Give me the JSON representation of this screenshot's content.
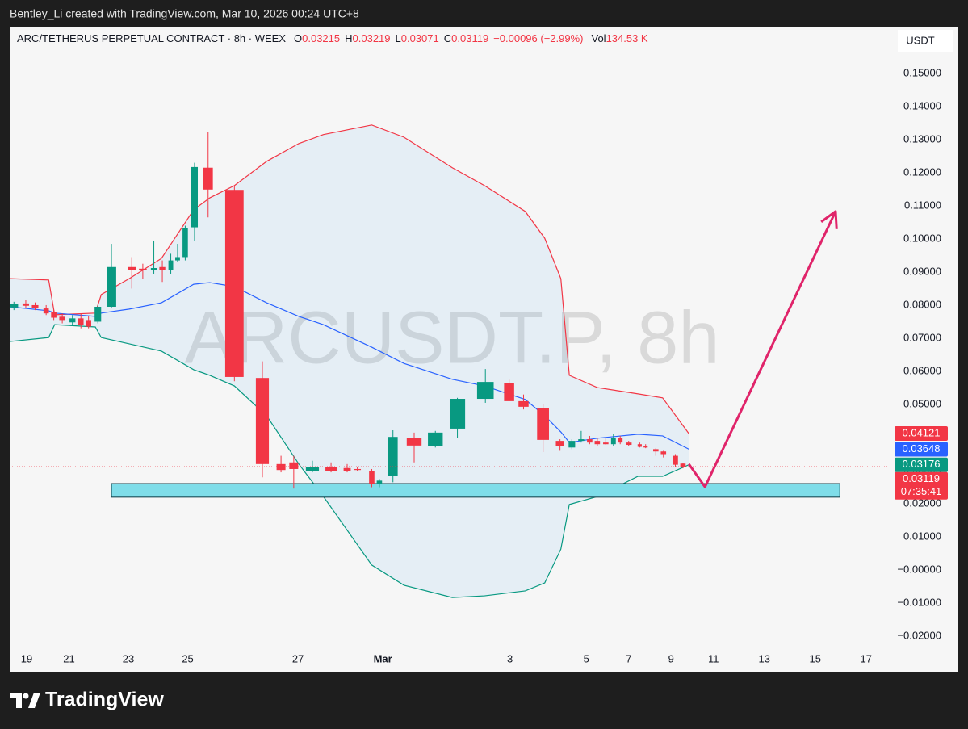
{
  "header": {
    "credit": "Bentley_Li created with TradingView.com, Mar 10, 2026 00:24 UTC+8"
  },
  "footer": {
    "brand": "TradingView"
  },
  "chart_data": {
    "type": "candlestick",
    "symbol": "ARC/TETHERUS PERPETUAL CONTRACT · 8h · WEEX",
    "legend": [
      {
        "key": "O",
        "value": "0.03215"
      },
      {
        "key": "H",
        "value": "0.03219"
      },
      {
        "key": "L",
        "value": "0.03071"
      },
      {
        "key": "C",
        "value": "0.03119"
      }
    ],
    "change": "−0.00096 (−2.99%)",
    "volume": {
      "key": "Vol",
      "value": "134.53 K"
    },
    "watermark": "ARCUSDT.P, 8h",
    "currency": "USDT",
    "up_color": "#089981",
    "down_color": "#f23645",
    "grid": false,
    "xlim": [
      0,
      103.4
    ],
    "ylim": [
      -0.0229,
      0.1641
    ],
    "xticks": [
      {
        "value": 2,
        "label": "19"
      },
      {
        "value": 7,
        "label": "21"
      },
      {
        "value": 14,
        "label": "23"
      },
      {
        "value": 21,
        "label": "25"
      },
      {
        "value": 34,
        "label": "27"
      },
      {
        "value": 44,
        "label": "Mar"
      },
      {
        "value": 59,
        "label": "3"
      },
      {
        "value": 68,
        "label": "5"
      },
      {
        "value": 73,
        "label": "7"
      },
      {
        "value": 78,
        "label": "9"
      },
      {
        "value": 83,
        "label": "11"
      },
      {
        "value": 89,
        "label": "13"
      },
      {
        "value": 95,
        "label": "15"
      },
      {
        "value": 101,
        "label": "17"
      }
    ],
    "yticks": [
      {
        "value": 0.15,
        "label": "0.15000"
      },
      {
        "value": 0.14,
        "label": "0.14000"
      },
      {
        "value": 0.13,
        "label": "0.13000"
      },
      {
        "value": 0.12,
        "label": "0.12000"
      },
      {
        "value": 0.11,
        "label": "0.11000"
      },
      {
        "value": 0.1,
        "label": "0.10000"
      },
      {
        "value": 0.09,
        "label": "0.09000"
      },
      {
        "value": 0.08,
        "label": "0.08000"
      },
      {
        "value": 0.07,
        "label": "0.07000"
      },
      {
        "value": 0.06,
        "label": "0.06000"
      },
      {
        "value": 0.05,
        "label": "0.05000"
      },
      {
        "value": 0.04,
        "label": "0.04000"
      },
      {
        "value": 0.03,
        "label": "0.03000"
      },
      {
        "value": 0.02,
        "label": "0.02000"
      },
      {
        "value": 0.01,
        "label": "0.01000"
      },
      {
        "value": 0,
        "label": "−0.00000"
      },
      {
        "value": -0.01,
        "label": "−0.01000"
      },
      {
        "value": -0.02,
        "label": "−0.02000"
      }
    ],
    "x": [
      0.5,
      1.9,
      3.0,
      4.3,
      5.2,
      6.2,
      7.4,
      8.4,
      9.3,
      10.4,
      12.0,
      14.4,
      15.7,
      17.0,
      18.0,
      19.0,
      19.8,
      20.7,
      21.8,
      23.4,
      26.5,
      29.8,
      32.0,
      33.5,
      35.7,
      37.9,
      39.8,
      41.0,
      42.7,
      43.6,
      45.2,
      47.7,
      50.2,
      52.8,
      56.1,
      58.9,
      60.6,
      62.9,
      64.9,
      66.3,
      67.4,
      68.4,
      69.3,
      70.3,
      71.2,
      72.0,
      73.0,
      74.3,
      75.0,
      76.2,
      77.1,
      78.5,
      79.4
    ],
    "open": [
      0.0793,
      0.0805,
      0.08,
      0.079,
      0.0778,
      0.0765,
      0.0748,
      0.076,
      0.0755,
      0.075,
      0.0795,
      0.0915,
      0.091,
      0.0905,
      0.0915,
      0.0905,
      0.0935,
      0.0945,
      0.1035,
      0.1215,
      0.1148,
      0.058,
      0.032,
      0.0325,
      0.03,
      0.031,
      0.0308,
      0.0305,
      0.0298,
      0.026,
      0.0283,
      0.04,
      0.0375,
      0.0427,
      0.0517,
      0.0565,
      0.051,
      0.049,
      0.039,
      0.037,
      0.039,
      0.0395,
      0.039,
      0.0385,
      0.038,
      0.04,
      0.0385,
      0.038,
      0.0375,
      0.0365,
      0.0358,
      0.0345,
      0.03215
    ],
    "high": [
      0.081,
      0.0815,
      0.0808,
      0.08,
      0.0785,
      0.0775,
      0.077,
      0.0775,
      0.0768,
      0.08,
      0.0985,
      0.0945,
      0.0925,
      0.0995,
      0.0935,
      0.0955,
      0.0985,
      0.104,
      0.123,
      0.1324,
      0.116,
      0.063,
      0.0345,
      0.0345,
      0.033,
      0.0325,
      0.032,
      0.0312,
      0.0305,
      0.0275,
      0.0422,
      0.0415,
      0.042,
      0.052,
      0.0607,
      0.0575,
      0.053,
      0.05,
      0.0395,
      0.0395,
      0.042,
      0.0405,
      0.04,
      0.04,
      0.041,
      0.0405,
      0.039,
      0.0385,
      0.038,
      0.0368,
      0.036,
      0.035,
      0.03219
    ],
    "low": [
      0.0785,
      0.079,
      0.0785,
      0.077,
      0.0755,
      0.0745,
      0.0738,
      0.073,
      0.073,
      0.0745,
      0.079,
      0.085,
      0.088,
      0.0895,
      0.087,
      0.0895,
      0.093,
      0.0935,
      0.0995,
      0.1065,
      0.057,
      0.028,
      0.0295,
      0.0246,
      0.0295,
      0.0295,
      0.0295,
      0.0298,
      0.025,
      0.025,
      0.0265,
      0.0325,
      0.037,
      0.04,
      0.0505,
      0.051,
      0.0485,
      0.0356,
      0.036,
      0.0365,
      0.0385,
      0.038,
      0.0375,
      0.0378,
      0.0375,
      0.038,
      0.0375,
      0.037,
      0.0368,
      0.0345,
      0.034,
      0.031,
      0.03071
    ],
    "close": [
      0.0803,
      0.0798,
      0.079,
      0.0775,
      0.0762,
      0.0755,
      0.076,
      0.074,
      0.0735,
      0.0795,
      0.0915,
      0.0905,
      0.0905,
      0.0912,
      0.0905,
      0.0935,
      0.0945,
      0.1032,
      0.1217,
      0.1149,
      0.0583,
      0.032,
      0.0302,
      0.0305,
      0.031,
      0.03,
      0.03,
      0.0302,
      0.026,
      0.027,
      0.0402,
      0.0376,
      0.0415,
      0.0517,
      0.0568,
      0.051,
      0.0493,
      0.0393,
      0.0375,
      0.039,
      0.0395,
      0.0385,
      0.038,
      0.038,
      0.04,
      0.0385,
      0.0378,
      0.0372,
      0.037,
      0.0358,
      0.035,
      0.0318,
      0.03119
    ],
    "bands": {
      "x": [
        0,
        4.6,
        5.3,
        10.1,
        10.8,
        14.1,
        17.9,
        21.7,
        23.6,
        26.5,
        30.3,
        34.1,
        37.0,
        42.7,
        46.5,
        52.2,
        56.0,
        60.8,
        63.1,
        65.0,
        66.0,
        69.3,
        74.1,
        77.0,
        80.1
      ],
      "upper": [
        0.088,
        0.0876,
        0.0771,
        0.0776,
        0.0832,
        0.088,
        0.0941,
        0.1088,
        0.1124,
        0.1161,
        0.1234,
        0.1288,
        0.1315,
        0.1344,
        0.1307,
        0.1215,
        0.1161,
        0.1083,
        0.1002,
        0.088,
        0.0588,
        0.0551,
        0.0532,
        0.052,
        0.0412
      ],
      "middle": [
        0.0795,
        0.0783,
        0.0776,
        0.0766,
        0.0776,
        0.0788,
        0.0807,
        0.0863,
        0.0868,
        0.0856,
        0.0807,
        0.0766,
        0.0741,
        0.0673,
        0.0624,
        0.0576,
        0.0556,
        0.0515,
        0.0466,
        0.0417,
        0.0385,
        0.0398,
        0.041,
        0.0405,
        0.0365
      ],
      "lower": [
        0.069,
        0.0702,
        0.0741,
        0.0734,
        0.0702,
        0.0683,
        0.0661,
        0.0605,
        0.0588,
        0.0556,
        0.0466,
        0.032,
        0.0222,
        0.0015,
        -0.0046,
        -0.0083,
        -0.0078,
        -0.0063,
        -0.0039,
        0.0063,
        0.0198,
        0.0222,
        0.0283,
        0.0283,
        0.0318
      ],
      "upper_color": "#f23645",
      "middle_color": "#2962ff",
      "lower_color": "#089981"
    },
    "last_labels": [
      {
        "value": 0.04121,
        "label": "0.04121",
        "color": "#f23645"
      },
      {
        "value": 0.03648,
        "label": "0.03648",
        "color": "#2962ff"
      },
      {
        "value": 0.03176,
        "label": "0.03176",
        "color": "#089981"
      },
      {
        "value": 0.03119,
        "label": "0.03119",
        "countdown": "07:35:41",
        "color": "#f23645"
      }
    ],
    "zone": {
      "x": [
        12.0,
        97.9
      ],
      "y": [
        0.022,
        0.0261
      ],
      "color": "#7fdde9"
    },
    "arrow": {
      "x": [
        80.1,
        82.0,
        97.4
      ],
      "y": [
        0.032,
        0.0251,
        0.1083
      ],
      "color": "#e0246a"
    }
  }
}
